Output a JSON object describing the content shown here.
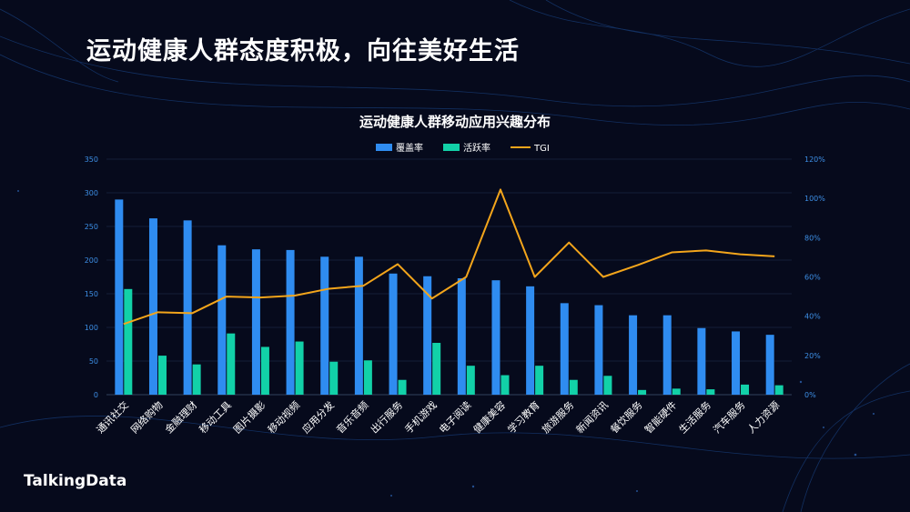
{
  "slide": {
    "title": "运动健康人群态度积极，向往美好生活",
    "brand": "TalkingData"
  },
  "chart_data": {
    "type": "bar",
    "title": "运动健康人群移动应用兴趣分布",
    "categories": [
      "通讯社交",
      "网络购物",
      "金融理财",
      "移动工具",
      "图片摄影",
      "移动视频",
      "应用分发",
      "音乐音频",
      "出行服务",
      "手机游戏",
      "电子阅读",
      "健康美容",
      "学习教育",
      "旅游服务",
      "新闻资讯",
      "餐饮服务",
      "智能硬件",
      "生活服务",
      "汽车服务",
      "人力资源"
    ],
    "series": [
      {
        "name": "覆盖率",
        "kind": "bar",
        "axis": "left",
        "color": "#2f8cf0",
        "values": [
          290,
          262,
          259,
          222,
          216,
          215,
          205,
          205,
          180,
          176,
          173,
          170,
          161,
          136,
          133,
          118,
          118,
          99,
          94,
          89
        ]
      },
      {
        "name": "活跃率",
        "kind": "bar",
        "axis": "left",
        "color": "#12d1a8",
        "values": [
          157,
          58,
          45,
          91,
          71,
          79,
          49,
          51,
          22,
          77,
          43,
          29,
          43,
          22,
          28,
          7,
          9,
          8,
          15,
          14
        ]
      },
      {
        "name": "TGI",
        "kind": "line",
        "axis": "right",
        "color": "#f3a51b",
        "values": [
          0.36,
          0.42,
          0.415,
          0.5,
          0.495,
          0.505,
          0.54,
          0.555,
          0.665,
          0.49,
          0.6,
          1.045,
          0.6,
          0.775,
          0.6,
          0.66,
          0.725,
          0.735,
          0.715,
          0.705
        ]
      }
    ],
    "left_axis": {
      "min": 0,
      "max": 350,
      "ticks": [
        "0",
        "50",
        "100",
        "150",
        "200",
        "250",
        "300",
        "350"
      ]
    },
    "right_axis": {
      "min": 0,
      "max": 1.2,
      "ticks": [
        "0%",
        "20%",
        "40%",
        "60%",
        "80%",
        "100%",
        "120%"
      ]
    },
    "legend_position": "top-center"
  }
}
